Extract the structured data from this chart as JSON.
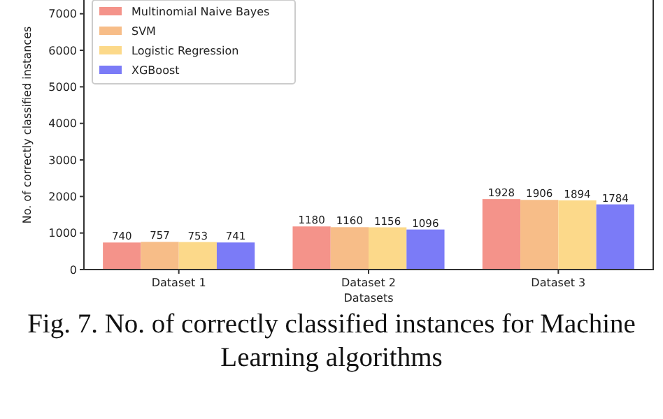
{
  "chart_data": {
    "type": "bar",
    "xlabel": "Datasets",
    "ylabel": "No. of correctly classified instances",
    "categories": [
      "Dataset 1",
      "Dataset 2",
      "Dataset 3"
    ],
    "series": [
      {
        "name": "Multinomial Naive Bayes",
        "color": "#f4938a",
        "values": [
          740,
          1180,
          1928
        ]
      },
      {
        "name": "SVM",
        "color": "#f7bd88",
        "values": [
          757,
          1160,
          1906
        ]
      },
      {
        "name": "Logistic Regression",
        "color": "#fcd98a",
        "values": [
          753,
          1156,
          1894
        ]
      },
      {
        "name": "XGBoost",
        "color": "#7b7bf7",
        "values": [
          741,
          1096,
          1784
        ]
      }
    ],
    "ylim": [
      0,
      7300
    ],
    "yticks": [
      0,
      1000,
      2000,
      3000,
      4000,
      5000,
      6000,
      7000
    ],
    "data_labels": true,
    "legend": "top left",
    "grid": false,
    "annotations": [
      "Fig. 7. No. of correctly classified instances for Machine Learning algorithms"
    ]
  }
}
